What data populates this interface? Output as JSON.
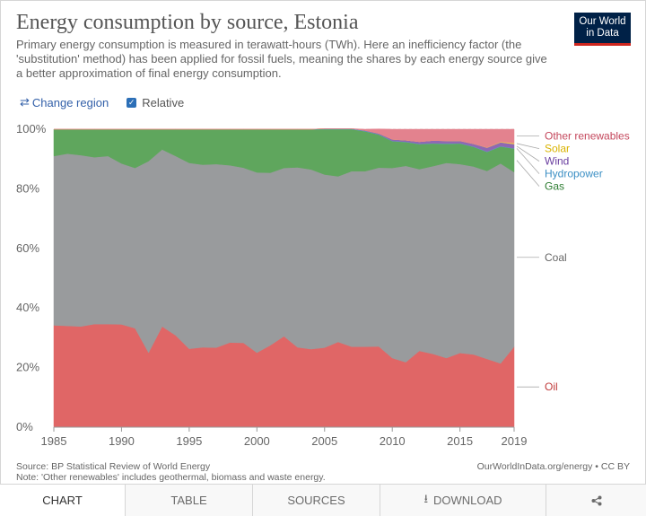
{
  "header": {
    "title": "Energy consumption by source, Estonia",
    "subtitle": "Primary energy consumption is measured in terawatt-hours (TWh). Here an inefficiency factor (the 'substitution' method) has been applied for fossil fuels, meaning the shares by each energy source give a better approximation of final energy consumption.",
    "logo_line1": "Our World",
    "logo_line2": "in Data"
  },
  "controls": {
    "change_region": "Change region",
    "relative": "Relative",
    "relative_checked": true
  },
  "footer": {
    "source": "Source: BP Statistical Review of World Energy",
    "note": "Note: 'Other renewables' includes geothermal, biomass and waste energy.",
    "credit": "OurWorldInData.org/energy • CC BY"
  },
  "tabs": [
    {
      "label": "CHART",
      "active": true
    },
    {
      "label": "TABLE",
      "active": false
    },
    {
      "label": "SOURCES",
      "active": false
    },
    {
      "label": "DOWNLOAD",
      "active": false
    },
    {
      "label": "",
      "active": false
    }
  ],
  "colors": {
    "oil": "#e06666",
    "coal": "#999b9d",
    "gas": "#5fa65d",
    "hydropower": "#53a8d6",
    "wind": "#8e68b3",
    "solar": "#f2c94c",
    "other_renewables": "#e3828e"
  },
  "chart_data": {
    "type": "area",
    "stacked": true,
    "relative": true,
    "title": "Energy consumption by source, Estonia",
    "x": [
      1985,
      1986,
      1987,
      1988,
      1989,
      1990,
      1991,
      1992,
      1993,
      1994,
      1995,
      1996,
      1997,
      1998,
      1999,
      2000,
      2001,
      2002,
      2003,
      2004,
      2005,
      2006,
      2007,
      2008,
      2009,
      2010,
      2011,
      2012,
      2013,
      2014,
      2015,
      2016,
      2017,
      2018,
      2019
    ],
    "x_ticks": [
      "1985",
      "1990",
      "1995",
      "2000",
      "2005",
      "2010",
      "2015",
      "2019"
    ],
    "x_tick_values": [
      1985,
      1990,
      1995,
      2000,
      2005,
      2010,
      2015,
      2019
    ],
    "y_ticks": [
      "0%",
      "20%",
      "40%",
      "60%",
      "80%",
      "100%"
    ],
    "y_tick_values": [
      0,
      20,
      40,
      60,
      80,
      100
    ],
    "ylim": [
      0,
      100
    ],
    "series": [
      {
        "name": "Oil",
        "key": "oil",
        "values": [
          34.2,
          34.0,
          33.8,
          34.6,
          34.6,
          34.5,
          33.2,
          25.0,
          33.8,
          30.8,
          26.3,
          26.8,
          26.7,
          28.4,
          28.3,
          25.0,
          27.5,
          30.5,
          26.8,
          26.2,
          26.7,
          28.6,
          27.0,
          27.0,
          27.1,
          23.2,
          21.8,
          25.6,
          24.6,
          23.2,
          24.9,
          24.4,
          22.9,
          21.4,
          27.0
        ]
      },
      {
        "name": "Coal",
        "key": "coal",
        "values": [
          56.8,
          57.8,
          57.5,
          56.0,
          56.4,
          54.0,
          53.8,
          64.3,
          59.4,
          60.2,
          62.4,
          61.3,
          61.6,
          59.5,
          58.8,
          60.5,
          57.9,
          56.5,
          60.4,
          60.3,
          58.1,
          55.6,
          58.9,
          58.9,
          60.0,
          63.8,
          65.9,
          61.0,
          63.0,
          65.5,
          63.4,
          63.1,
          63.1,
          67.1,
          58.6
        ]
      },
      {
        "name": "Gas",
        "key": "gas",
        "values": [
          9.0,
          8.2,
          8.7,
          9.4,
          9.0,
          11.5,
          13.0,
          10.7,
          6.8,
          9.0,
          11.3,
          11.9,
          11.7,
          12.1,
          12.9,
          14.5,
          14.6,
          13.0,
          12.8,
          13.5,
          15.2,
          15.8,
          14.1,
          13.4,
          11.1,
          9.0,
          8.0,
          8.4,
          7.6,
          6.4,
          6.9,
          6.6,
          6.4,
          5.7,
          7.9
        ]
      },
      {
        "name": "Hydropower",
        "key": "hydropower",
        "values": [
          0,
          0,
          0,
          0,
          0,
          0,
          0,
          0,
          0,
          0,
          0,
          0,
          0,
          0,
          0,
          0,
          0,
          0,
          0,
          0,
          0.1,
          0.1,
          0.1,
          0.1,
          0.1,
          0.1,
          0.1,
          0.1,
          0.1,
          0.1,
          0.1,
          0.1,
          0.1,
          0.1,
          0.1
        ]
      },
      {
        "name": "Wind",
        "key": "wind",
        "values": [
          0,
          0,
          0,
          0,
          0,
          0,
          0,
          0,
          0,
          0,
          0,
          0,
          0,
          0,
          0,
          0,
          0,
          0,
          0,
          0,
          0.1,
          0.1,
          0.1,
          0.2,
          0.3,
          0.5,
          0.5,
          0.7,
          0.9,
          0.9,
          0.8,
          0.9,
          1.3,
          1.3,
          1.4
        ]
      },
      {
        "name": "Solar",
        "key": "solar",
        "values": [
          0,
          0,
          0,
          0,
          0,
          0,
          0,
          0,
          0,
          0,
          0,
          0,
          0,
          0,
          0,
          0,
          0,
          0,
          0,
          0,
          0,
          0,
          0,
          0,
          0,
          0,
          0,
          0,
          0,
          0,
          0,
          0,
          0.1,
          0.2,
          0.4
        ]
      },
      {
        "name": "Other renewables",
        "key": "other_renewables",
        "values": [
          0,
          0,
          0,
          0,
          0,
          0,
          0,
          0,
          0,
          0,
          0,
          0,
          0,
          0,
          0,
          0,
          0,
          0,
          0,
          0,
          0,
          0,
          0,
          0.4,
          1.5,
          3.4,
          3.7,
          4.2,
          3.8,
          3.9,
          3.9,
          4.9,
          6.1,
          4.2,
          4.6
        ]
      }
    ],
    "legend": {
      "placement": "right",
      "labels": [
        "Other renewables",
        "Solar",
        "Wind",
        "Hydropower",
        "Gas",
        "Coal",
        "Oil"
      ]
    }
  }
}
